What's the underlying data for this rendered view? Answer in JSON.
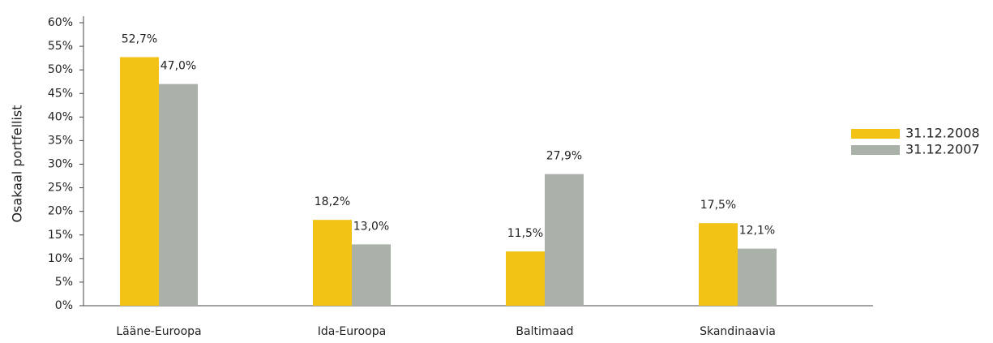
{
  "chart_data": {
    "type": "bar",
    "y_label": "Osakaal portfellist",
    "categories": [
      "Lääne-Euroopa",
      "Ida-Euroopa",
      "Baltimaad",
      "Skandinaavia"
    ],
    "series": [
      {
        "name": "31.12.2008",
        "color": "#f2c314",
        "values": [
          52.7,
          18.2,
          11.5,
          17.5
        ],
        "value_labels": [
          "52,7%",
          "18,2%",
          "11,5%",
          "17,5%"
        ]
      },
      {
        "name": "31.12.2007",
        "color": "#a9b1a8",
        "values": [
          47.0,
          13.0,
          27.9,
          12.1
        ],
        "value_labels": [
          "47,0%",
          "13,0%",
          "27,9%",
          "12,1%"
        ]
      }
    ],
    "ylim": [
      0,
      60
    ],
    "yticks": [
      {
        "value": 0,
        "label": "0%"
      },
      {
        "value": 5,
        "label": "5%"
      },
      {
        "value": 10,
        "label": "10%"
      },
      {
        "value": 15,
        "label": "15%"
      },
      {
        "value": 20,
        "label": "20%"
      },
      {
        "value": 25,
        "label": "25%"
      },
      {
        "value": 30,
        "label": "30%"
      },
      {
        "value": 35,
        "label": "35%"
      },
      {
        "value": 40,
        "label": "40%"
      },
      {
        "value": 45,
        "label": "45%"
      },
      {
        "value": 50,
        "label": "50%"
      },
      {
        "value": 55,
        "label": "55%"
      },
      {
        "value": 60,
        "label": "60%"
      }
    ],
    "legend": "right"
  }
}
